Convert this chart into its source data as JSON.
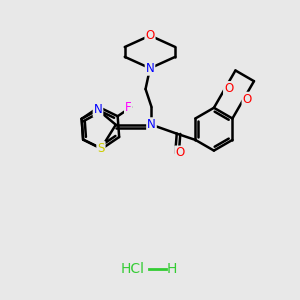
{
  "bg_color": "#e8e8e8",
  "atom_colors": {
    "N": "#0000ff",
    "O": "#ff0000",
    "S": "#cccc00",
    "F": "#ff00ff",
    "Cl": "#33cc33",
    "H_salt": "#33cc33"
  },
  "line_color": "#000000",
  "lw": 1.8,
  "figsize": [
    3.0,
    3.0
  ],
  "dpi": 100,
  "fontsize": 8.5
}
